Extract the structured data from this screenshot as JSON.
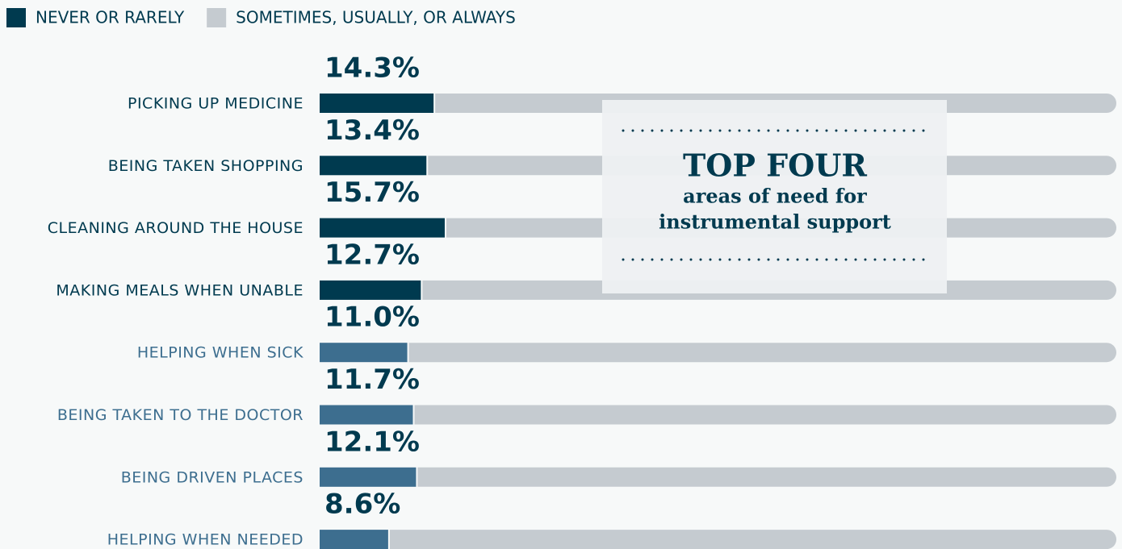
{
  "chart_data": {
    "type": "stacked-bar",
    "categories": [
      "PICKING UP MEDICINE",
      "BEING TAKEN SHOPPING",
      "CLEANING AROUND THE HOUSE",
      "MAKING MEALS WHEN UNABLE",
      "HELPING WHEN SICK",
      "BEING TAKEN TO THE DOCTOR",
      "BEING DRIVEN PLACES",
      "HELPING WHEN NEEDED"
    ],
    "category_colors": [
      "#003a4f",
      "#003a4f",
      "#003a4f",
      "#003a4f",
      "#3d6e8f",
      "#3d6e8f",
      "#3d6e8f",
      "#3d6e8f"
    ],
    "series": [
      {
        "name": "NEVER OR RARELY",
        "color": "#003a4f",
        "colors": [
          "#003a4f",
          "#003a4f",
          "#003a4f",
          "#003a4f",
          "#3d6e8f",
          "#3d6e8f",
          "#3d6e8f",
          "#3d6e8f"
        ],
        "values": [
          14.3,
          13.4,
          15.7,
          12.7,
          11.0,
          11.7,
          12.1,
          8.6
        ],
        "value_labels": [
          "14.3%",
          "13.4%",
          "15.7%",
          "12.7%",
          "11.0%",
          "11.7%",
          "12.1%",
          "8.6%"
        ]
      },
      {
        "name": "SOMETIMES, USUALLY, OR ALWAYS",
        "color": "#c5cbd0",
        "values": [
          85.7,
          86.6,
          84.3,
          87.3,
          89.0,
          88.3,
          87.9,
          91.4
        ]
      }
    ],
    "annotation": {
      "title": "TOP FOUR",
      "lines": [
        "areas of need for",
        "instrumental support"
      ]
    }
  }
}
